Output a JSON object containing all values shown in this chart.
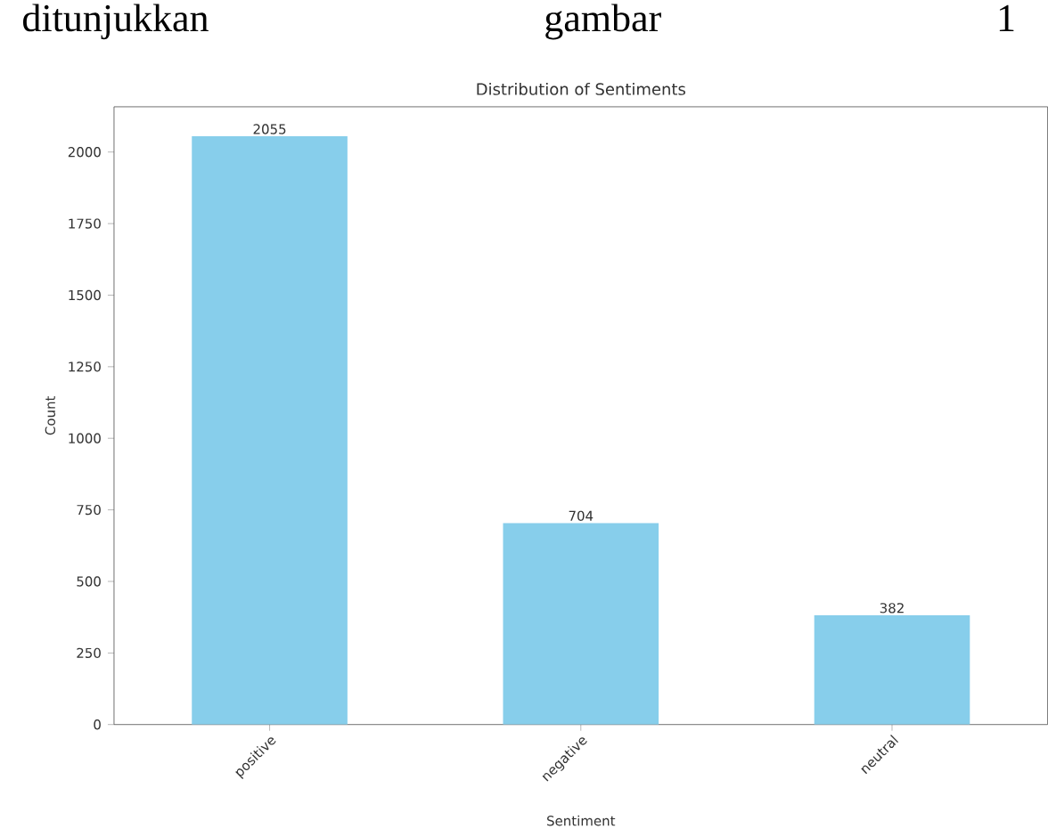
{
  "chart_data": {
    "type": "bar",
    "title": "Distribution of Sentiments",
    "xlabel": "Sentiment",
    "ylabel": "Count",
    "annotations": [
      "ditunjukkan gambar 1"
    ],
    "categories": [
      "positive",
      "negative",
      "neutral"
    ],
    "values": [
      2055,
      704,
      382
    ],
    "color": "#87ceeb",
    "ylim": [
      0,
      2158
    ],
    "yticks": [
      0,
      250,
      500,
      750,
      1000,
      1250,
      1500,
      1750,
      2000
    ],
    "data_labels": true
  }
}
